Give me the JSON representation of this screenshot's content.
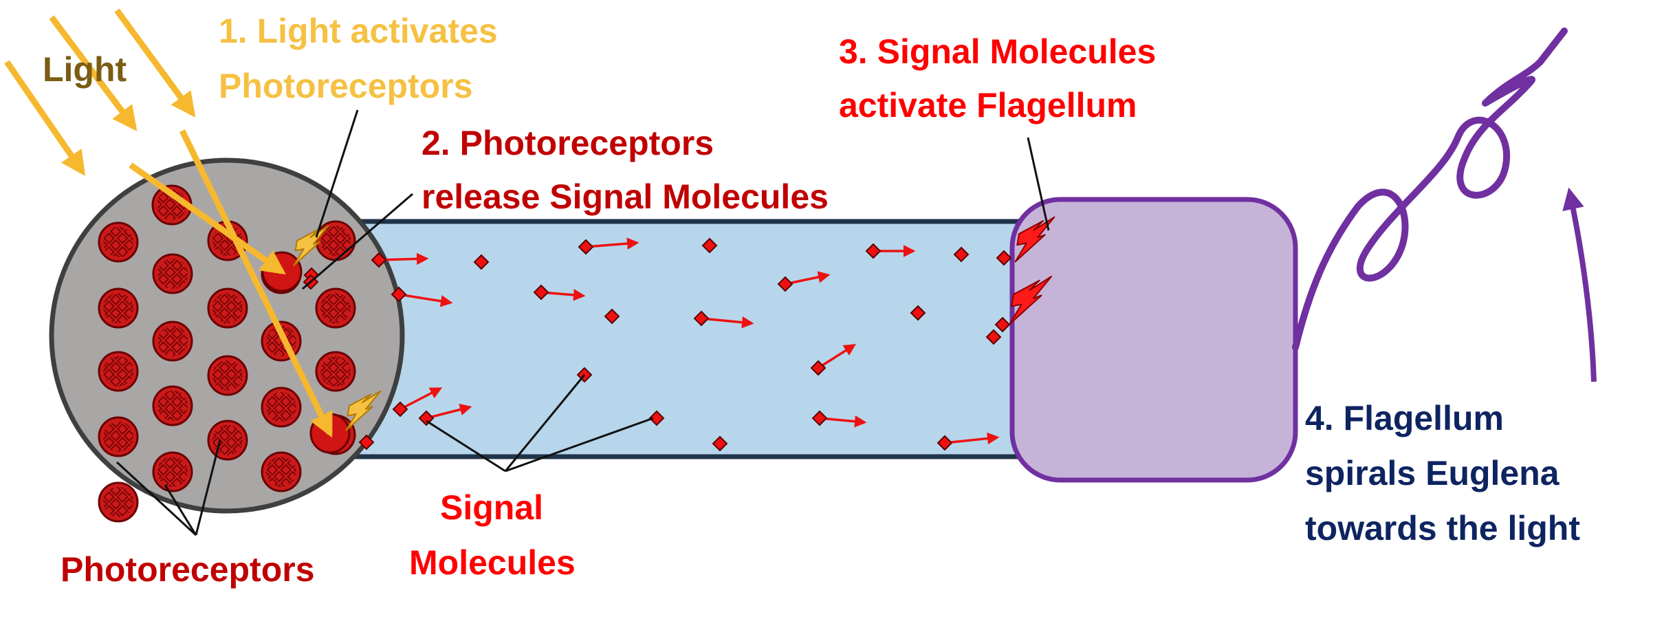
{
  "labels": {
    "light": "Light",
    "step1_line1": "1. Light activates",
    "step1_line2": "Photoreceptors",
    "step2_line1": "2. Photoreceptors",
    "step2_line2": "release Signal Molecules",
    "step3_line1": "3. Signal Molecules",
    "step3_line2": "activate Flagellum",
    "step4_line1": "4. Flagellum",
    "step4_line2": "spirals Euglena",
    "step4_line3": "towards the light",
    "photoreceptors": "Photoreceptors",
    "signal_line1": "Signal",
    "signal_line2": "Molecules"
  },
  "colors": {
    "light_label": "#7a5c12",
    "step1": "#f5c143",
    "light_ray": "#f5b82e",
    "step2": "#c00000",
    "step3": "#ff0000",
    "step4": "#0e2461",
    "photoreceptor": "#cc1a1a",
    "eyespot": "#a9a6a6",
    "tube": "#b7d6eb",
    "flagellum_body": "#c6b4d8",
    "flagellum_purple": "#7030a0",
    "signal_arrow": "#ee1111"
  }
}
